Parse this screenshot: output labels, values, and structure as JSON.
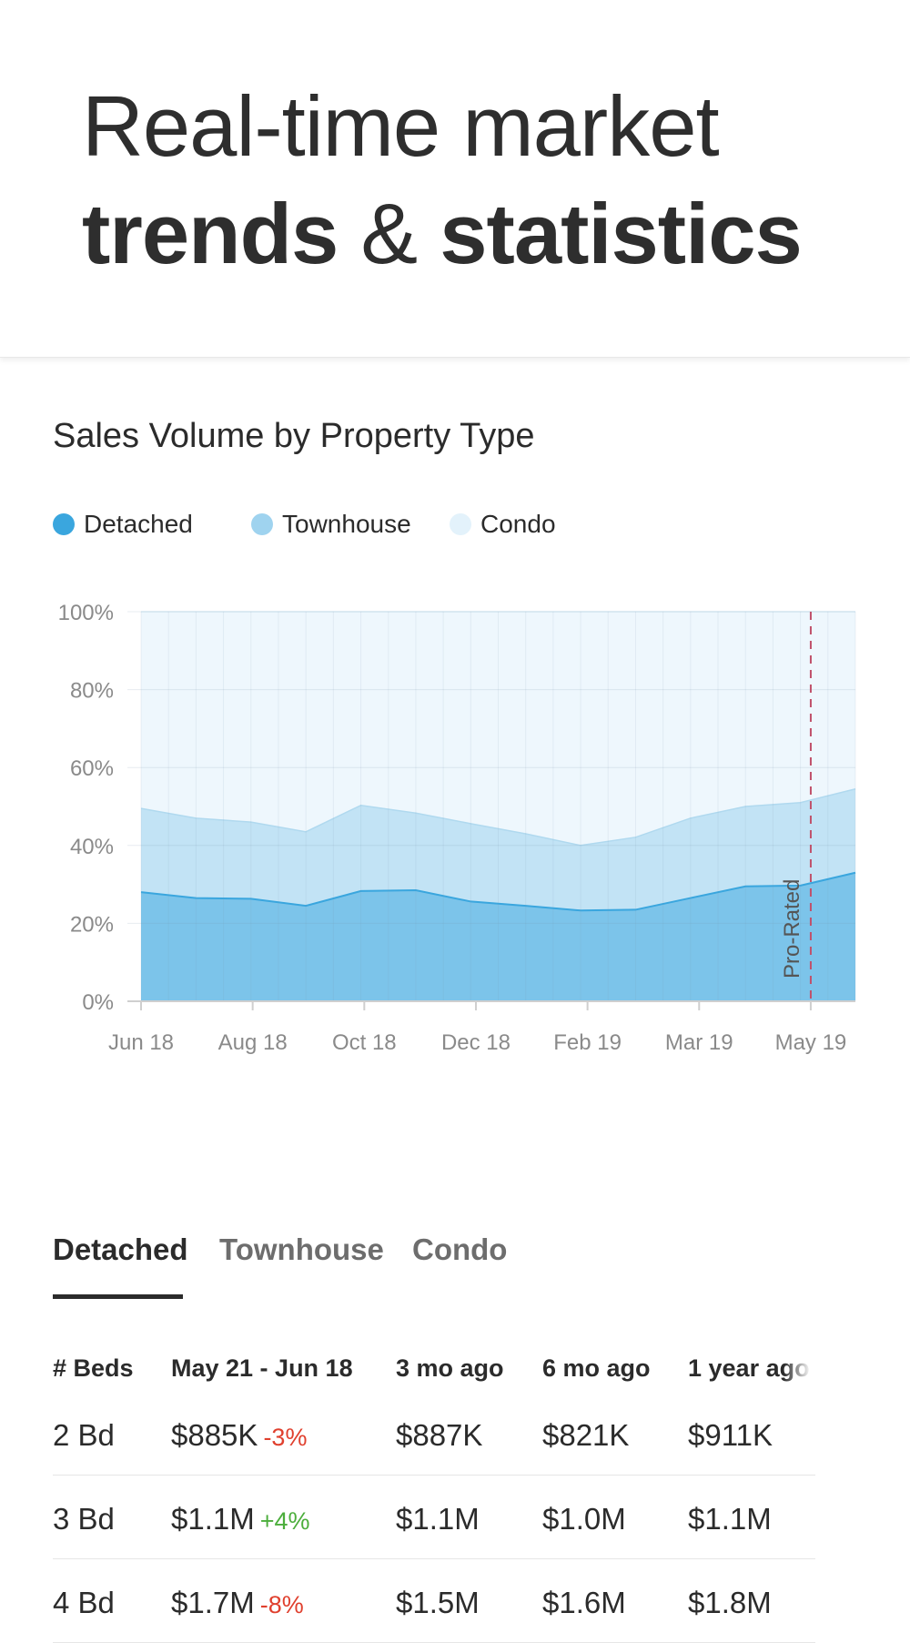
{
  "hero": {
    "line1": "Real-time market",
    "line2_part1": "trends",
    "line2_amp": "&",
    "line2_part2": "statistics"
  },
  "chart_section": {
    "title": "Sales Volume by Property Type",
    "legend": [
      {
        "label": "Detached",
        "color": "#3aa6de"
      },
      {
        "label": "Townhouse",
        "color": "#9fd3ef"
      },
      {
        "label": "Condo",
        "color": "#e3f2fb"
      }
    ]
  },
  "chart_data": {
    "type": "area",
    "title": "Sales Volume by Property Type",
    "stacked": true,
    "x_tick_labels": [
      "Jun 18",
      "Aug 18",
      "Oct 18",
      "Dec 18",
      "Feb 19",
      "Mar 19",
      "May 19"
    ],
    "y_tick_labels": [
      "0%",
      "20%",
      "40%",
      "60%",
      "80%",
      "100%"
    ],
    "ylim": [
      0,
      100
    ],
    "grid": true,
    "legend_position": "top-left",
    "annotation": {
      "label": "Pro-Rated",
      "at_x_label": "May 19",
      "style": "dashed",
      "color": "#c0506a"
    },
    "series": [
      {
        "name": "Detached",
        "color": "#3aa6de",
        "values": [
          28,
          26.5,
          26.3,
          24.5,
          28.3,
          28.5,
          25.6,
          24.5,
          23.3,
          23.5,
          26.5,
          29.5,
          29.7,
          33
        ]
      },
      {
        "name": "Townhouse",
        "color": "#9fd3ef",
        "values": [
          21.5,
          20.5,
          19.7,
          19,
          22,
          19.8,
          20,
          18.5,
          16.7,
          18.6,
          20.5,
          20.5,
          21.3,
          21.5
        ]
      },
      {
        "name": "Condo",
        "color": "#e3f2fb",
        "values": [
          50.5,
          53,
          54,
          56.5,
          49.7,
          51.7,
          54.4,
          57,
          60,
          57.9,
          53,
          50,
          49,
          45.5
        ]
      }
    ]
  },
  "tabs": [
    {
      "label": "Detached",
      "active": true
    },
    {
      "label": "Townhouse",
      "active": false
    },
    {
      "label": "Condo",
      "active": false
    }
  ],
  "table": {
    "headers": [
      "# Beds",
      "May 21 - Jun 18",
      "3 mo ago",
      "6 mo ago",
      "1 year ago"
    ],
    "rows": [
      {
        "beds": "2 Bd",
        "current": "$885K",
        "change": "-3%",
        "change_dir": "neg",
        "m3": "$887K",
        "m6": "$821K",
        "y1": "$911K"
      },
      {
        "beds": "3 Bd",
        "current": "$1.1M",
        "change": "+4%",
        "change_dir": "pos",
        "m3": "$1.1M",
        "m6": "$1.0M",
        "y1": "$1.1M"
      },
      {
        "beds": "4 Bd",
        "current": "$1.7M",
        "change": "-8%",
        "change_dir": "neg",
        "m3": "$1.5M",
        "m6": "$1.6M",
        "y1": "$1.8M"
      }
    ]
  }
}
